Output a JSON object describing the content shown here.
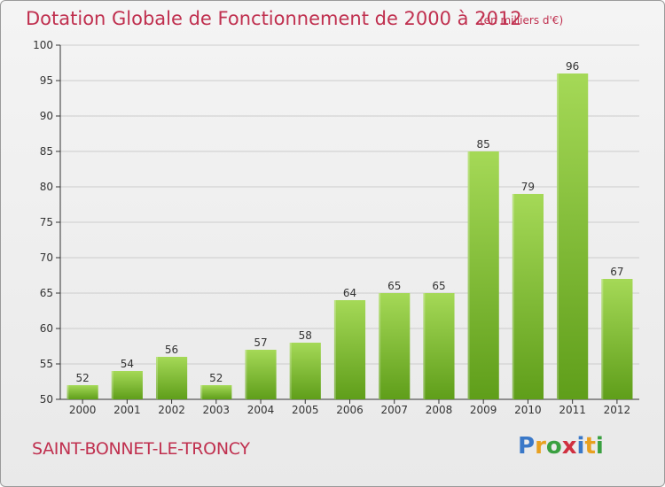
{
  "title": "Dotation Globale de Fonctionnement de 2000 à 2012",
  "subtitle": "(en milliers d'€)",
  "commune": "SAINT-BONNET-LE-TRONCY",
  "logo": {
    "letters": [
      "P",
      "r",
      "o",
      "x",
      "i",
      "t",
      "i"
    ],
    "colors": [
      "#3a78c8",
      "#e8a020",
      "#3aa040",
      "#d03040",
      "#3a78c8",
      "#e8a020",
      "#3aa040"
    ]
  },
  "colors": {
    "bar_light": "#a5d957",
    "bar_dark": "#5f9e1a",
    "grid": "#cccccc",
    "axis": "#333333",
    "accent": "#c0304f"
  },
  "chart_data": {
    "type": "bar",
    "categories": [
      "2000",
      "2001",
      "2002",
      "2003",
      "2004",
      "2005",
      "2006",
      "2007",
      "2008",
      "2009",
      "2010",
      "2011",
      "2012"
    ],
    "values": [
      52,
      54,
      56,
      52,
      57,
      58,
      64,
      65,
      65,
      85,
      79,
      96,
      67
    ],
    "title": "Dotation Globale de Fonctionnement de 2000 à 2012",
    "subtitle": "(en milliers d'€)",
    "ylim": [
      50,
      100
    ],
    "yticks": [
      50,
      55,
      60,
      65,
      70,
      75,
      80,
      85,
      90,
      95,
      100
    ],
    "grid": true,
    "data_labels": true
  }
}
